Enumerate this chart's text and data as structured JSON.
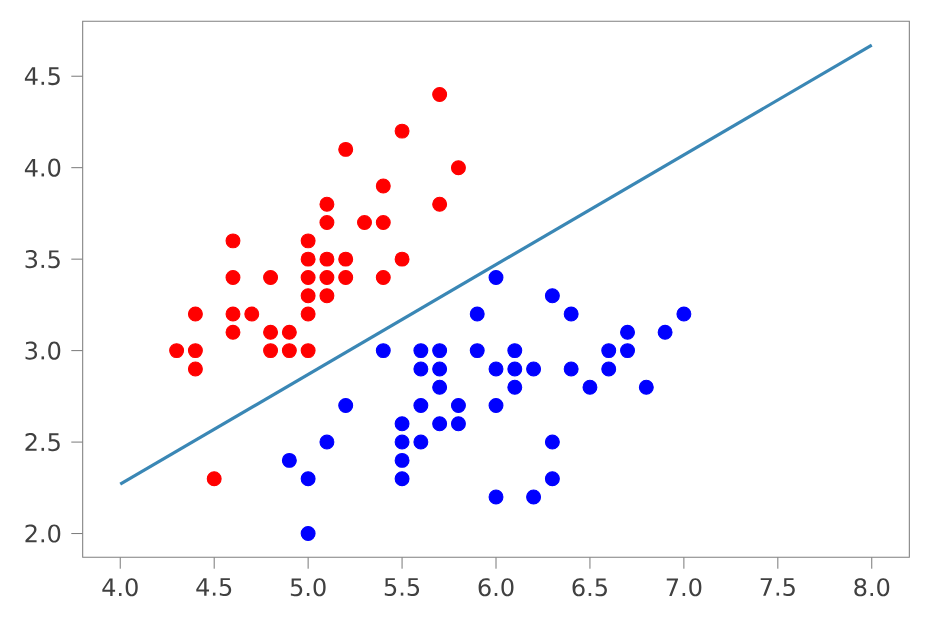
{
  "chart_data": {
    "type": "scatter",
    "xlim": [
      3.8,
      8.2
    ],
    "ylim": [
      1.87,
      4.8
    ],
    "xticks": [
      {
        "value": 4,
        "label": "4.0"
      },
      4.5,
      {
        "value": 5,
        "label": "5.0"
      },
      5.5,
      {
        "value": 6,
        "label": "6.0"
      },
      6.5,
      {
        "value": 7,
        "label": "7.0"
      },
      7.5,
      {
        "value": 8,
        "label": "8.0"
      }
    ],
    "yticks": [
      {
        "value": 2,
        "label": "2.0"
      },
      2.5,
      {
        "value": 3,
        "label": "3.0"
      },
      3.5,
      {
        "value": 4,
        "label": "4.0"
      },
      4.5
    ],
    "series": [
      {
        "type": "scatter",
        "marker": "circle",
        "color": "#ff0000",
        "x": [
          4.3,
          4.4,
          4.4,
          4.4,
          4.5,
          4.6,
          4.6,
          4.6,
          4.6,
          4.7,
          4.8,
          4.8,
          4.8,
          4.9,
          4.9,
          5.0,
          5.0,
          5.0,
          5.0,
          5.0,
          5.0,
          5.1,
          5.1,
          5.1,
          5.1,
          5.1,
          5.2,
          5.2,
          5.2,
          5.3,
          5.4,
          5.4,
          5.4,
          5.5,
          5.5,
          5.7,
          5.7,
          5.8
        ],
        "values": [
          3.0,
          3.0,
          2.9,
          3.2,
          2.3,
          3.6,
          3.4,
          3.2,
          3.1,
          3.2,
          3.4,
          3.1,
          3.0,
          3.1,
          3.0,
          3.6,
          3.5,
          3.4,
          3.3,
          3.2,
          3.0,
          3.8,
          3.7,
          3.5,
          3.4,
          3.3,
          4.1,
          3.5,
          3.4,
          3.7,
          3.9,
          3.7,
          3.4,
          4.2,
          3.5,
          4.4,
          3.8,
          4.0
        ]
      },
      {
        "type": "scatter",
        "marker": "circle",
        "color": "#0000ff",
        "x": [
          4.9,
          5.0,
          5.0,
          5.1,
          5.2,
          5.4,
          5.5,
          5.5,
          5.5,
          5.5,
          5.6,
          5.6,
          5.6,
          5.6,
          5.7,
          5.7,
          5.7,
          5.7,
          5.8,
          5.8,
          5.9,
          5.9,
          6.0,
          6.0,
          6.0,
          6.0,
          6.1,
          6.1,
          6.1,
          6.2,
          6.2,
          6.3,
          6.3,
          6.3,
          6.4,
          6.4,
          6.5,
          6.6,
          6.6,
          6.7,
          6.7,
          6.8,
          6.9,
          7.0
        ],
        "values": [
          2.4,
          2.3,
          2.0,
          2.5,
          2.7,
          3.0,
          2.6,
          2.5,
          2.4,
          2.3,
          3.0,
          2.9,
          2.7,
          2.5,
          3.0,
          2.9,
          2.8,
          2.6,
          2.7,
          2.6,
          3.2,
          3.0,
          3.4,
          2.9,
          2.7,
          2.2,
          3.0,
          2.9,
          2.8,
          2.9,
          2.2,
          3.3,
          2.5,
          2.3,
          3.2,
          2.9,
          2.8,
          3.0,
          2.9,
          3.1,
          3.0,
          2.8,
          3.1,
          3.2
        ]
      },
      {
        "type": "line",
        "color": "#3a87b5",
        "marker": "none",
        "x": [
          4.0,
          8.0
        ],
        "values": [
          2.27,
          4.67
        ]
      }
    ]
  }
}
